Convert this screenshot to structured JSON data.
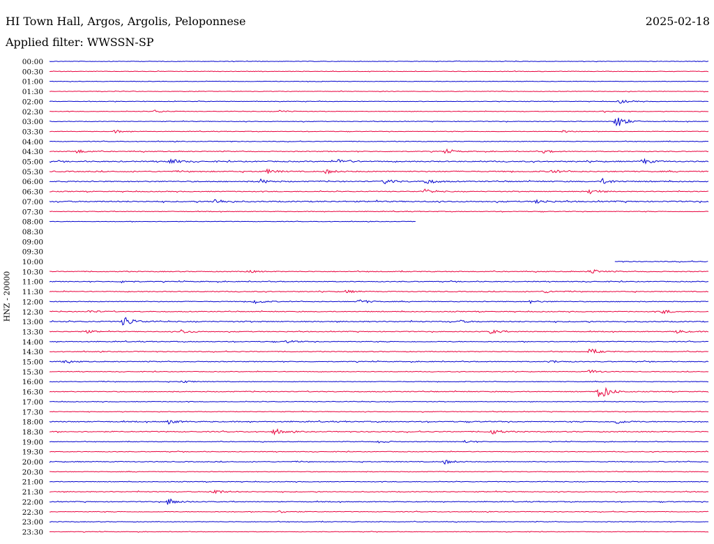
{
  "header": {
    "station": "HI Town Hall, Argos, Argolis, Peloponnese",
    "date": "2025-02-18",
    "filter": "Applied filter: WWSSN-SP"
  },
  "chart_data": {
    "type": "line",
    "title": "HI Town Hall, Argos, Argolis, Peloponnese",
    "ylabel": "HNZ - 20000",
    "row_labels": [
      "00:00",
      "00:30",
      "01:00",
      "01:30",
      "02:00",
      "02:30",
      "03:00",
      "03:30",
      "04:00",
      "04:30",
      "05:00",
      "05:30",
      "06:00",
      "06:30",
      "07:00",
      "07:30",
      "08:00",
      "08:30",
      "09:00",
      "09:30",
      "10:00",
      "10:30",
      "11:00",
      "11:30",
      "12:00",
      "12:30",
      "13:00",
      "13:30",
      "14:00",
      "14:30",
      "15:00",
      "15:30",
      "16:00",
      "16:30",
      "17:00",
      "17:30",
      "18:00",
      "18:30",
      "19:00",
      "19:30",
      "20:00",
      "20:30",
      "21:00",
      "21:30",
      "22:00",
      "22:30",
      "23:00",
      "23:30"
    ],
    "colors": [
      "#0000cc",
      "#e8003c"
    ],
    "traces": [
      {
        "start": 0,
        "end": 1,
        "noise": 1,
        "events": []
      },
      {
        "start": 0,
        "end": 1,
        "noise": 1,
        "events": []
      },
      {
        "start": 0,
        "end": 1,
        "noise": 1,
        "events": []
      },
      {
        "start": 0,
        "end": 1,
        "noise": 1,
        "events": []
      },
      {
        "start": 0,
        "end": 1,
        "noise": 1,
        "events": [
          {
            "t": 0.865,
            "a": 3
          }
        ]
      },
      {
        "start": 0,
        "end": 1,
        "noise": 1,
        "events": [
          {
            "t": 0.16,
            "a": 2
          },
          {
            "t": 0.35,
            "a": 2
          },
          {
            "t": 0.84,
            "a": 2
          }
        ]
      },
      {
        "start": 0,
        "end": 1,
        "noise": 1.2,
        "events": [
          {
            "t": 0.86,
            "a": 10
          }
        ]
      },
      {
        "start": 0,
        "end": 1,
        "noise": 1,
        "events": [
          {
            "t": 0.1,
            "a": 2
          },
          {
            "t": 0.78,
            "a": 2
          }
        ]
      },
      {
        "start": 0,
        "end": 1,
        "noise": 1.2,
        "events": []
      },
      {
        "start": 0,
        "end": 1,
        "noise": 1.5,
        "events": [
          {
            "t": 0.04,
            "a": 3
          },
          {
            "t": 0.6,
            "a": 3
          },
          {
            "t": 0.75,
            "a": 2
          }
        ]
      },
      {
        "start": 0,
        "end": 1,
        "noise": 2,
        "events": [
          {
            "t": 0.18,
            "a": 5
          },
          {
            "t": 0.44,
            "a": 4
          },
          {
            "t": 0.9,
            "a": 4
          }
        ]
      },
      {
        "start": 0,
        "end": 1,
        "noise": 2,
        "events": [
          {
            "t": 0.33,
            "a": 3
          },
          {
            "t": 0.42,
            "a": 3
          },
          {
            "t": 0.76,
            "a": 3
          }
        ]
      },
      {
        "start": 0,
        "end": 1,
        "noise": 2,
        "events": [
          {
            "t": 0.32,
            "a": 3
          },
          {
            "t": 0.51,
            "a": 4
          },
          {
            "t": 0.57,
            "a": 4
          },
          {
            "t": 0.84,
            "a": 4
          }
        ]
      },
      {
        "start": 0,
        "end": 1,
        "noise": 1.5,
        "events": [
          {
            "t": 0.57,
            "a": 3
          },
          {
            "t": 0.82,
            "a": 4
          }
        ]
      },
      {
        "start": 0,
        "end": 1,
        "noise": 2.2,
        "events": [
          {
            "t": 0.25,
            "a": 4
          },
          {
            "t": 0.74,
            "a": 3
          }
        ]
      },
      {
        "start": 0,
        "end": 1,
        "noise": 1.2,
        "events": []
      },
      {
        "start": 0,
        "end": 0.557,
        "noise": 1,
        "events": []
      },
      {
        "start": 0,
        "end": 0,
        "noise": 0,
        "events": []
      },
      {
        "start": 0,
        "end": 0,
        "noise": 0,
        "events": []
      },
      {
        "start": 0,
        "end": 0,
        "noise": 0,
        "events": []
      },
      {
        "start": 0.858,
        "end": 1,
        "noise": 1.5,
        "events": []
      },
      {
        "start": 0,
        "end": 1,
        "noise": 1.5,
        "events": [
          {
            "t": 0.3,
            "a": 2
          },
          {
            "t": 0.82,
            "a": 4
          }
        ]
      },
      {
        "start": 0,
        "end": 1,
        "noise": 1.5,
        "events": [
          {
            "t": 0.11,
            "a": 2
          }
        ]
      },
      {
        "start": 0,
        "end": 1,
        "noise": 1.5,
        "events": [
          {
            "t": 0.45,
            "a": 2
          },
          {
            "t": 0.75,
            "a": 2
          }
        ]
      },
      {
        "start": 0,
        "end": 1,
        "noise": 1.5,
        "events": [
          {
            "t": 0.31,
            "a": 3
          },
          {
            "t": 0.47,
            "a": 3
          },
          {
            "t": 0.73,
            "a": 2
          }
        ]
      },
      {
        "start": 0,
        "end": 1,
        "noise": 1.5,
        "events": [
          {
            "t": 0.06,
            "a": 2
          },
          {
            "t": 0.93,
            "a": 3
          }
        ]
      },
      {
        "start": 0,
        "end": 1,
        "noise": 2,
        "events": [
          {
            "t": 0.113,
            "a": 8
          },
          {
            "t": 0.62,
            "a": 2
          }
        ]
      },
      {
        "start": 0,
        "end": 1,
        "noise": 1.5,
        "events": [
          {
            "t": 0.05,
            "a": 3
          },
          {
            "t": 0.2,
            "a": 3
          },
          {
            "t": 0.67,
            "a": 3
          },
          {
            "t": 0.95,
            "a": 3
          }
        ]
      },
      {
        "start": 0,
        "end": 1,
        "noise": 1.5,
        "events": [
          {
            "t": 0.36,
            "a": 2
          }
        ]
      },
      {
        "start": 0,
        "end": 1,
        "noise": 1.5,
        "events": [
          {
            "t": 0.82,
            "a": 4
          }
        ]
      },
      {
        "start": 0,
        "end": 1,
        "noise": 1.5,
        "events": [
          {
            "t": 0.02,
            "a": 2
          },
          {
            "t": 0.76,
            "a": 2
          }
        ]
      },
      {
        "start": 0,
        "end": 1,
        "noise": 1.2,
        "events": [
          {
            "t": 0.82,
            "a": 3
          }
        ]
      },
      {
        "start": 0,
        "end": 1,
        "noise": 1.2,
        "events": [
          {
            "t": 0.2,
            "a": 2
          }
        ]
      },
      {
        "start": 0,
        "end": 1,
        "noise": 1.5,
        "events": [
          {
            "t": 0.835,
            "a": 13
          }
        ]
      },
      {
        "start": 0,
        "end": 1,
        "noise": 1.2,
        "events": []
      },
      {
        "start": 0,
        "end": 1,
        "noise": 1.2,
        "events": []
      },
      {
        "start": 0,
        "end": 1,
        "noise": 1.8,
        "events": [
          {
            "t": 0.18,
            "a": 3
          },
          {
            "t": 0.86,
            "a": 3
          }
        ]
      },
      {
        "start": 0,
        "end": 1,
        "noise": 1.8,
        "events": [
          {
            "t": 0.34,
            "a": 4
          },
          {
            "t": 0.67,
            "a": 4
          }
        ]
      },
      {
        "start": 0,
        "end": 1,
        "noise": 1.2,
        "events": [
          {
            "t": 0.5,
            "a": 2
          },
          {
            "t": 0.63,
            "a": 2
          }
        ]
      },
      {
        "start": 0,
        "end": 1,
        "noise": 1.2,
        "events": []
      },
      {
        "start": 0,
        "end": 1,
        "noise": 1.5,
        "events": [
          {
            "t": 0.6,
            "a": 3
          }
        ]
      },
      {
        "start": 0,
        "end": 1,
        "noise": 1.2,
        "events": []
      },
      {
        "start": 0,
        "end": 1,
        "noise": 1.2,
        "events": []
      },
      {
        "start": 0,
        "end": 1,
        "noise": 1.5,
        "events": [
          {
            "t": 0.245,
            "a": 5
          }
        ]
      },
      {
        "start": 0,
        "end": 1,
        "noise": 1.5,
        "events": [
          {
            "t": 0.18,
            "a": 5
          }
        ]
      },
      {
        "start": 0,
        "end": 1,
        "noise": 1.2,
        "events": [
          {
            "t": 0.35,
            "a": 2
          }
        ]
      },
      {
        "start": 0,
        "end": 1,
        "noise": 1.2,
        "events": []
      },
      {
        "start": 0,
        "end": 1,
        "noise": 1,
        "events": []
      }
    ]
  }
}
